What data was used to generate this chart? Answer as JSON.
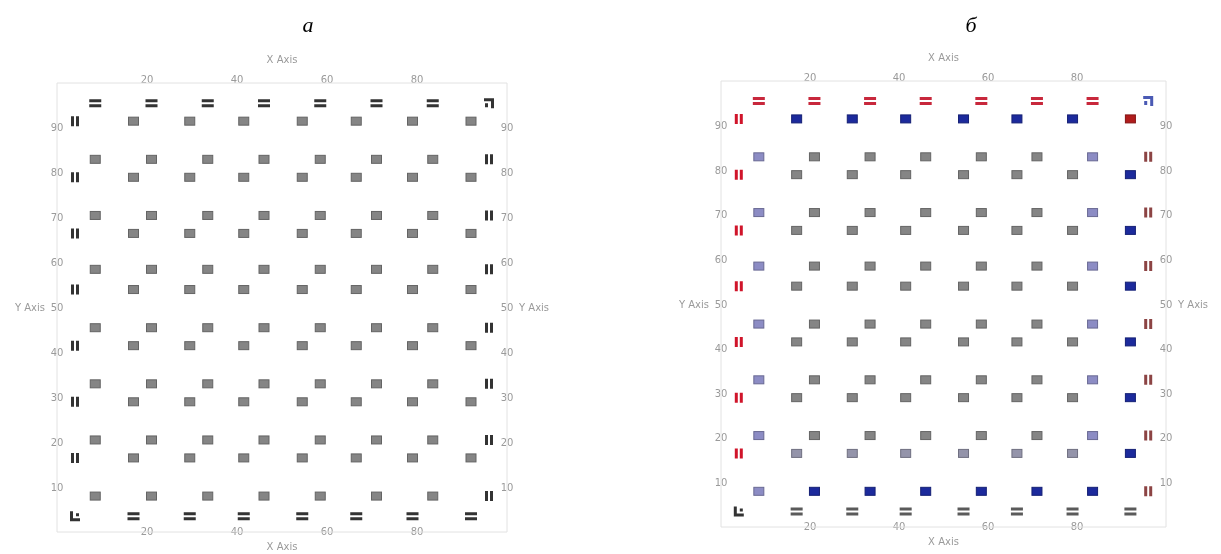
{
  "chart_data": [
    {
      "type": "scatter",
      "title": "а",
      "xlabel": "X Axis",
      "x2label": "X Axis",
      "ylabel": "Y Axis",
      "y2label": "Y Axis",
      "xlim": [
        0,
        100
      ],
      "xticks": [
        20,
        40,
        60,
        80
      ],
      "x2lim": [
        0,
        100
      ],
      "x2ticks": [
        20,
        40,
        60,
        80
      ],
      "ylim": [
        0,
        100
      ],
      "yticks": [
        10,
        20,
        30,
        40,
        50,
        60,
        70,
        80,
        90
      ],
      "y2lim": [
        0,
        100
      ],
      "y2ticks": [
        10,
        20,
        30,
        40,
        50,
        60,
        70,
        80,
        90
      ],
      "series": [
        {
          "color": "#858585",
          "marker": "square",
          "x": [
            8.5,
            21,
            33.5,
            46,
            58.5,
            71,
            83.5,
            17,
            29.5,
            41.5,
            54.5,
            66.5,
            79,
            92,
            8.5,
            21,
            33.5,
            46,
            58.5,
            71,
            83.5,
            17,
            29.5,
            41.5,
            54.5,
            66.5,
            79,
            92,
            8.5,
            21,
            33.5,
            46,
            58.5,
            71,
            83.5,
            17,
            29.5,
            41.5,
            54.5,
            66.5,
            79,
            92,
            8.5,
            21,
            33.5,
            46,
            58.5,
            71,
            83.5,
            17,
            29.5,
            41.5,
            54.5,
            66.5,
            79,
            92,
            8.5,
            21,
            33.5,
            46,
            58.5,
            71,
            83.5,
            17,
            29.5,
            41.5,
            54.5,
            66.5,
            79,
            92,
            8.5,
            21,
            33.5,
            46,
            58.5,
            71,
            83.5,
            17,
            29.5,
            41.5,
            54.5,
            66.5,
            79,
            92,
            8.5,
            21,
            33.5,
            46,
            58.5,
            71,
            83.5,
            17,
            29.5,
            41.5,
            54.5,
            66.5,
            79,
            92
          ],
          "values": [
            8,
            8,
            8,
            8,
            8,
            8,
            8,
            16.5,
            16.5,
            16.5,
            16.5,
            16.5,
            16.5,
            16.5,
            20.5,
            20.5,
            20.5,
            20.5,
            20.5,
            20.5,
            20.5,
            29,
            29,
            29,
            29,
            29,
            29,
            29,
            33,
            33,
            33,
            33,
            33,
            33,
            33,
            41.5,
            41.5,
            41.5,
            41.5,
            41.5,
            41.5,
            41.5,
            45.5,
            45.5,
            45.5,
            45.5,
            45.5,
            45.5,
            45.5,
            54,
            54,
            54,
            54,
            54,
            54,
            54,
            58.5,
            58.5,
            58.5,
            58.5,
            58.5,
            58.5,
            58.5,
            66.5,
            66.5,
            66.5,
            66.5,
            66.5,
            66.5,
            66.5,
            70.5,
            70.5,
            70.5,
            70.5,
            70.5,
            70.5,
            70.5,
            79,
            79,
            79,
            79,
            79,
            79,
            79,
            83,
            83,
            83,
            83,
            83,
            83,
            83,
            91.5,
            91.5,
            91.5,
            91.5,
            91.5,
            91.5,
            91.5
          ]
        },
        {
          "color": "#333333",
          "x": [
            4,
            4,
            4,
            4,
            4,
            4,
            4,
            96,
            96,
            96,
            96,
            96,
            96,
            96
          ],
          "values": [
            16.5,
            29,
            41.5,
            54,
            66.5,
            79,
            91.5,
            8,
            20.5,
            33,
            45.5,
            58.5,
            70.5,
            83
          ]
        },
        {
          "color": "#333333",
          "x": [
            8.5,
            21,
            33.5,
            46,
            58.5,
            71,
            83.5,
            17,
            29.5,
            41.5,
            54.5,
            66.5,
            79,
            92
          ],
          "values": [
            95.5,
            95.5,
            95.5,
            95.5,
            95.5,
            95.5,
            95.5,
            3.5,
            3.5,
            3.5,
            3.5,
            3.5,
            3.5,
            3.5
          ]
        },
        {
          "color": "#333333",
          "x": [
            96
          ],
          "values": [
            95.5
          ]
        },
        {
          "color": "#333333",
          "x": [
            4
          ],
          "values": [
            3.5
          ]
        }
      ]
    },
    {
      "type": "scatter",
      "title": "б",
      "xlabel": "X Axis",
      "x2label": "X Axis",
      "ylabel": "Y Axis",
      "y2label": "Y Axis",
      "xlim": [
        0,
        100
      ],
      "xticks": [
        20,
        40,
        60,
        80
      ],
      "x2lim": [
        0,
        100
      ],
      "x2ticks": [
        20,
        40,
        60,
        80
      ],
      "ylim": [
        0,
        100
      ],
      "yticks": [
        10,
        20,
        30,
        40,
        50,
        60,
        70,
        80,
        90
      ],
      "y2lim": [
        0,
        100
      ],
      "y2ticks": [
        10,
        20,
        30,
        40,
        50,
        60,
        70,
        80,
        90
      ],
      "series": [
        {
          "color": "#858585",
          "marker": "square",
          "x": [
            21,
            33.5,
            46,
            58.5,
            71,
            17,
            29.5,
            41.5,
            54.5,
            66.5,
            79,
            21,
            33.5,
            46,
            58.5,
            71,
            17,
            29.5,
            41.5,
            54.5,
            66.5,
            79,
            21,
            33.5,
            46,
            58.5,
            71,
            17,
            29.5,
            41.5,
            54.5,
            66.5,
            79,
            21,
            33.5,
            46,
            58.5,
            71,
            17,
            29.5,
            41.5,
            54.5,
            66.5,
            79,
            21,
            33.5,
            46,
            58.5,
            71,
            17,
            29.5,
            41.5,
            54.5,
            66.5,
            79,
            21,
            33.5,
            46,
            58.5,
            71
          ],
          "values": [
            20.5,
            20.5,
            20.5,
            20.5,
            20.5,
            29,
            29,
            29,
            29,
            29,
            29,
            33,
            33,
            33,
            33,
            33,
            41.5,
            41.5,
            41.5,
            41.5,
            41.5,
            41.5,
            45.5,
            45.5,
            45.5,
            45.5,
            45.5,
            54,
            54,
            54,
            54,
            54,
            54,
            58.5,
            58.5,
            58.5,
            58.5,
            58.5,
            66.5,
            66.5,
            66.5,
            66.5,
            66.5,
            66.5,
            70.5,
            70.5,
            70.5,
            70.5,
            70.5,
            79,
            79,
            79,
            79,
            79,
            79,
            83,
            83,
            83,
            83,
            83
          ]
        },
        {
          "color": "#8c8cc4",
          "marker": "square",
          "x": [
            8.5,
            8.5,
            8.5,
            8.5,
            8.5,
            8.5,
            8.5,
            83.5,
            83.5,
            83.5,
            83.5,
            83.5,
            83.5
          ],
          "values": [
            8,
            20.5,
            33,
            45.5,
            58.5,
            70.5,
            83,
            20.5,
            33,
            45.5,
            58.5,
            70.5,
            83
          ]
        },
        {
          "color": "#1c2a9c",
          "marker": "square",
          "x": [
            17,
            29.5,
            41.5,
            54.5,
            66.5,
            79,
            92,
            92,
            92,
            92,
            92,
            92,
            21,
            33.5,
            46,
            58.5,
            71,
            83.5
          ],
          "values": [
            91.5,
            91.5,
            91.5,
            91.5,
            91.5,
            91.5,
            16.5,
            29,
            41.5,
            54,
            66.5,
            79,
            8,
            8,
            8,
            8,
            8,
            8
          ]
        },
        {
          "color": "#b01c1c",
          "marker": "square",
          "x": [
            92
          ],
          "values": [
            91.5
          ]
        },
        {
          "color": "#9494aa",
          "marker": "square",
          "x": [
            17,
            29.5,
            41.5,
            54.5,
            66.5,
            79
          ],
          "values": [
            16.5,
            16.5,
            16.5,
            16.5,
            16.5,
            16.5
          ]
        },
        {
          "color": "#d0142a",
          "x": [
            4,
            4,
            4,
            4,
            4,
            4,
            4
          ],
          "values": [
            16.5,
            29,
            41.5,
            54,
            66.5,
            79,
            91.5
          ]
        },
        {
          "color": "#8c4444",
          "x": [
            96,
            96,
            96,
            96,
            96,
            96,
            96
          ],
          "values": [
            8,
            20.5,
            33,
            45.5,
            58.5,
            70.5,
            83
          ]
        },
        {
          "color": "#c8283c",
          "x": [
            8.5,
            21,
            33.5,
            46,
            58.5,
            71,
            83.5
          ],
          "values": [
            95.5,
            95.5,
            95.5,
            95.5,
            95.5,
            95.5,
            95.5
          ]
        },
        {
          "color": "#5a5a5a",
          "x": [
            17,
            29.5,
            41.5,
            54.5,
            66.5,
            79,
            92
          ],
          "values": [
            3.5,
            3.5,
            3.5,
            3.5,
            3.5,
            3.5,
            3.5
          ]
        },
        {
          "color": "#4a5ab4",
          "x": [
            96
          ],
          "values": [
            95.5
          ]
        },
        {
          "color": "#333333",
          "x": [
            4
          ],
          "values": [
            3.5
          ]
        }
      ]
    }
  ]
}
